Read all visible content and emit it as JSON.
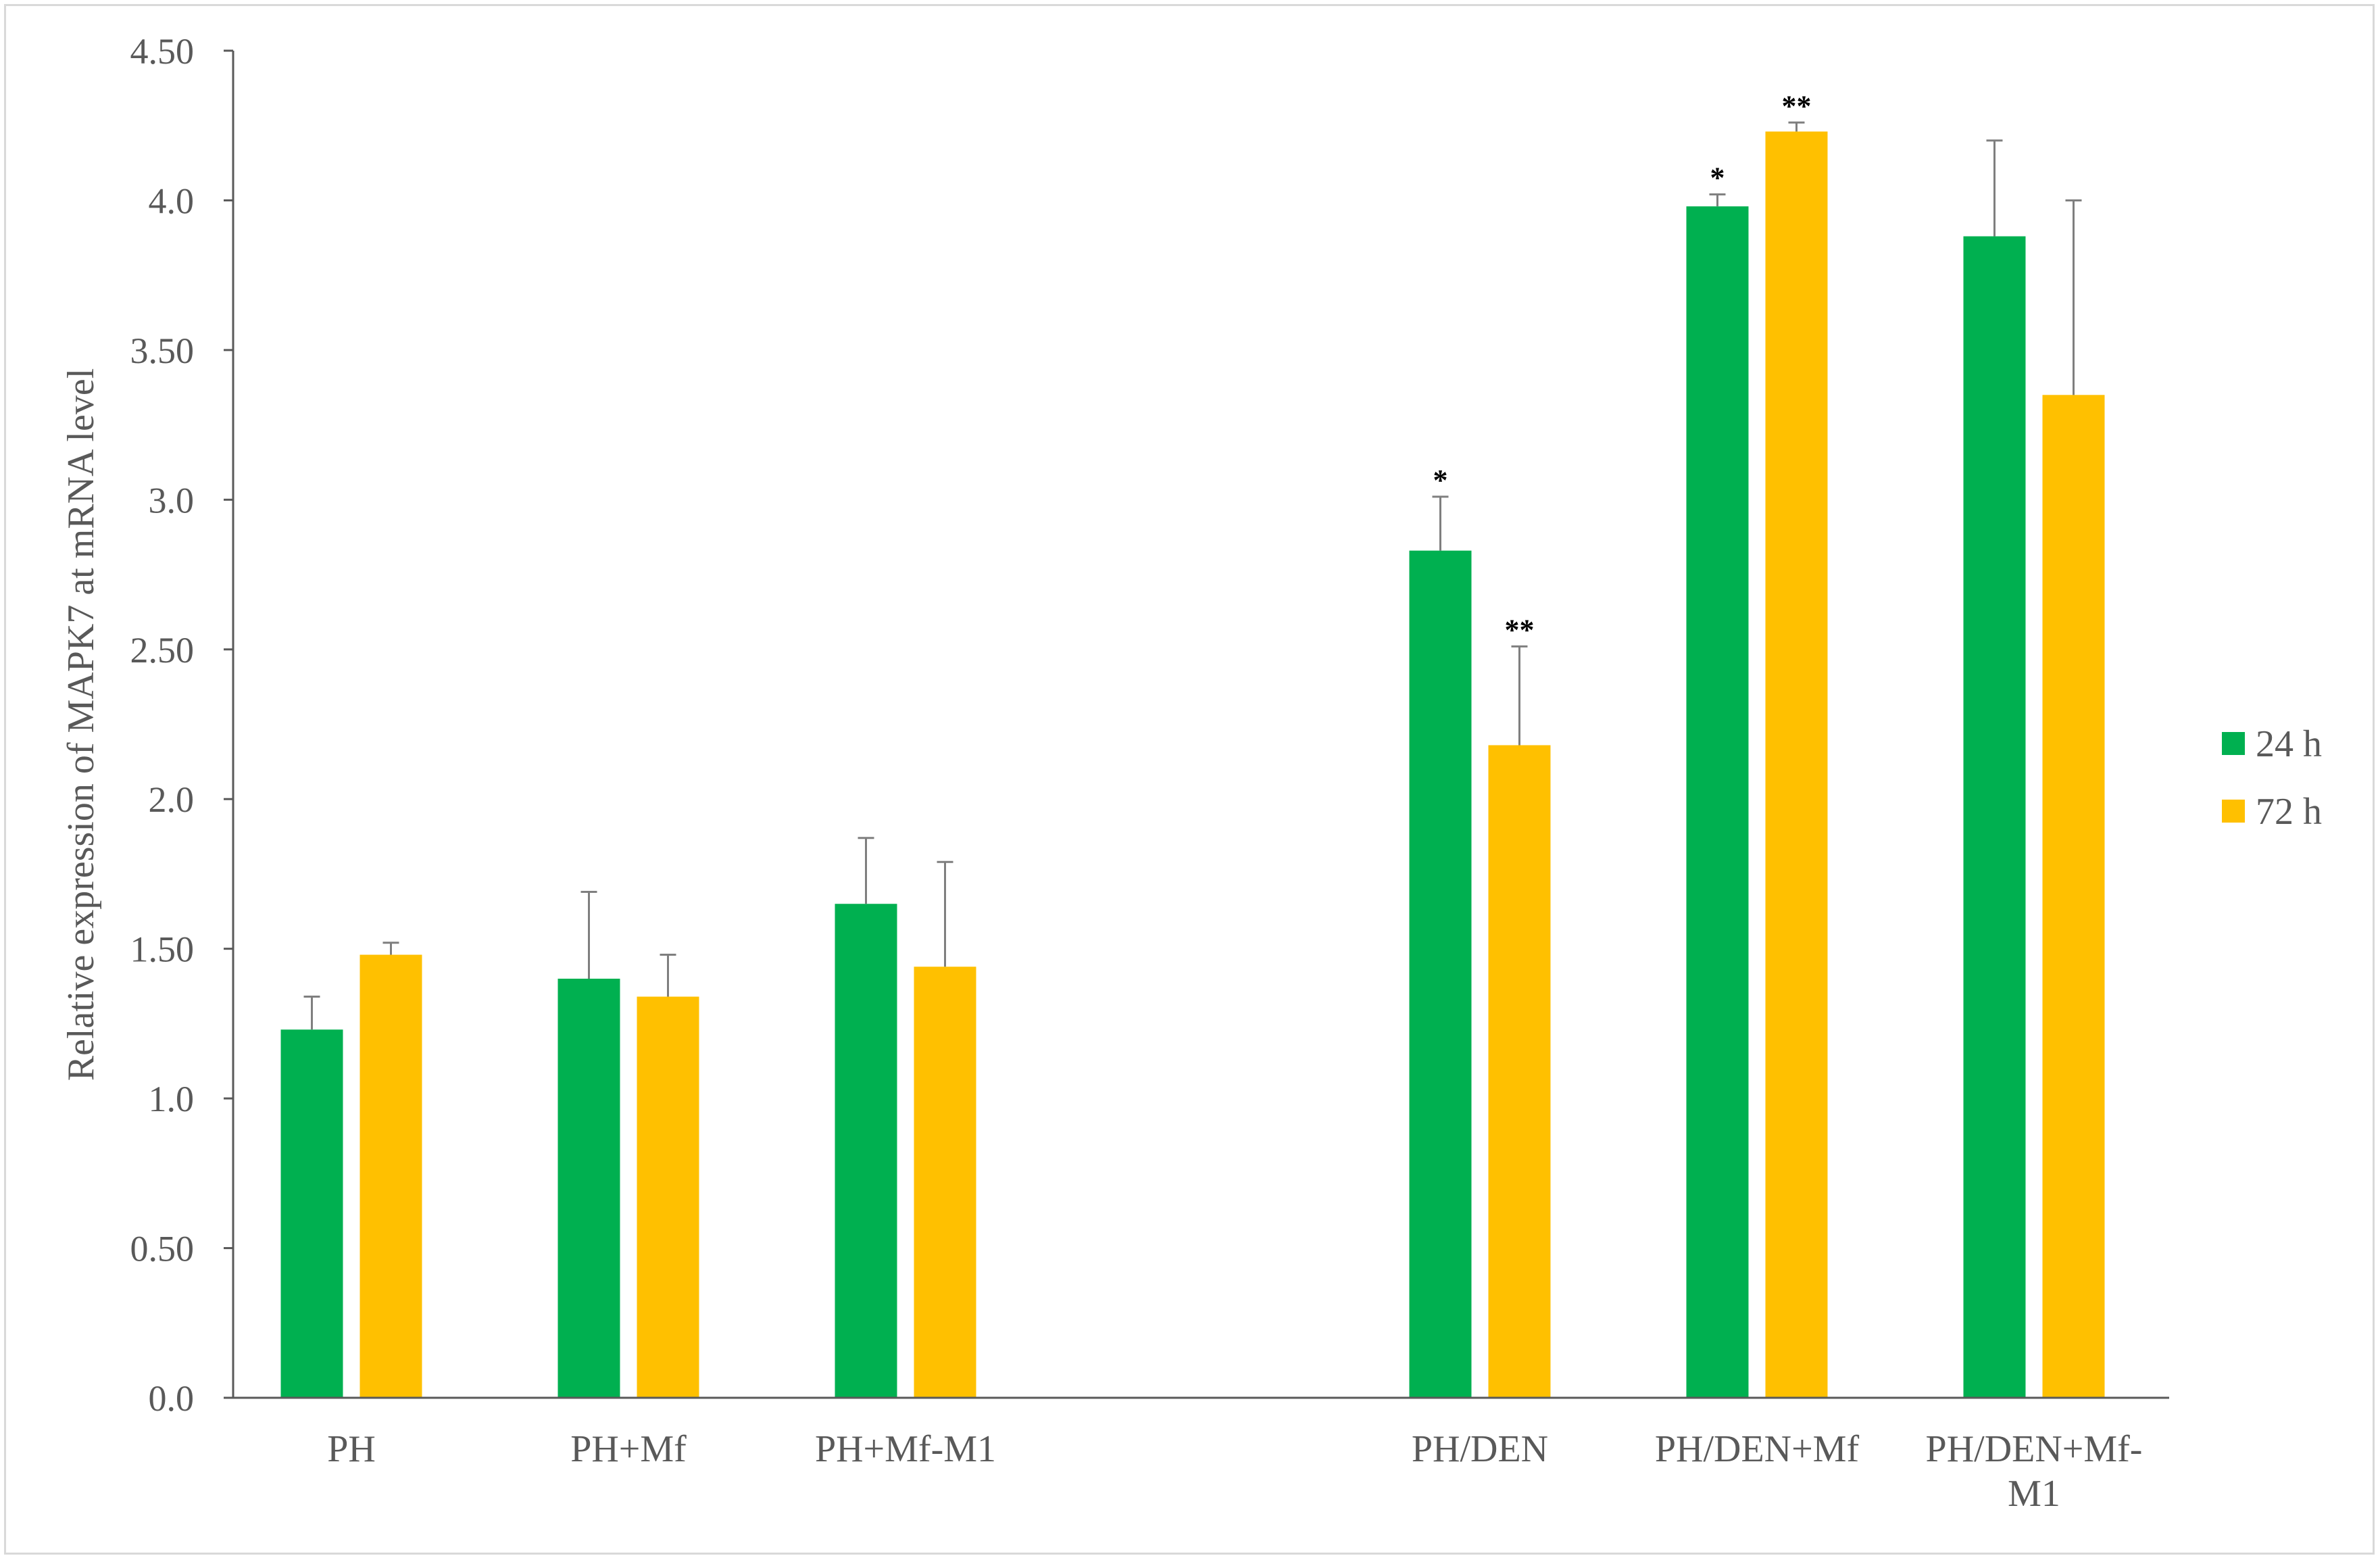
{
  "chart_data": {
    "type": "bar",
    "title": "",
    "xlabel": "",
    "ylabel": "Relative expression of MAPK7 at mRNA level",
    "ylim": [
      0,
      4.5
    ],
    "yticks": [
      "0.0",
      "0.50",
      "1.0",
      "1.50",
      "2.0",
      "2.50",
      "3.0",
      "3.50",
      "4.0",
      "4.50"
    ],
    "ytick_values": [
      0,
      0.5,
      1.0,
      1.5,
      2.0,
      2.5,
      3.0,
      3.5,
      4.0,
      4.5
    ],
    "categories": [
      {
        "label": "PH",
        "lines": [
          "PH"
        ]
      },
      {
        "label": "PH+Mf",
        "lines": [
          "PH+Mf"
        ]
      },
      {
        "label": "PH+Mf-M1",
        "lines": [
          "PH+Mf-M1"
        ]
      },
      {
        "label": "PH/DEN",
        "lines": [
          "PH/DEN"
        ]
      },
      {
        "label": "PH/DEN+Mf",
        "lines": [
          "PH/DEN+Mf"
        ]
      },
      {
        "label": "PH/DEN+Mf-M1",
        "lines": [
          "PH/DEN+Mf-",
          "M1"
        ]
      }
    ],
    "series": [
      {
        "name": "24 h",
        "color": "#00b050",
        "values": [
          1.23,
          1.4,
          1.65,
          2.83,
          3.98,
          3.88
        ],
        "errors": [
          0.11,
          0.29,
          0.22,
          0.18,
          0.04,
          0.32
        ],
        "significance": [
          "",
          "",
          "",
          "*",
          "*",
          ""
        ]
      },
      {
        "name": "72 h",
        "color": "#ffc000",
        "values": [
          1.48,
          1.34,
          1.44,
          2.18,
          4.23,
          3.35
        ],
        "errors": [
          0.04,
          0.14,
          0.35,
          0.33,
          0.03,
          0.65
        ],
        "significance": [
          "",
          "",
          "",
          "**",
          "**",
          ""
        ]
      }
    ],
    "legend": "right",
    "grid": false
  }
}
